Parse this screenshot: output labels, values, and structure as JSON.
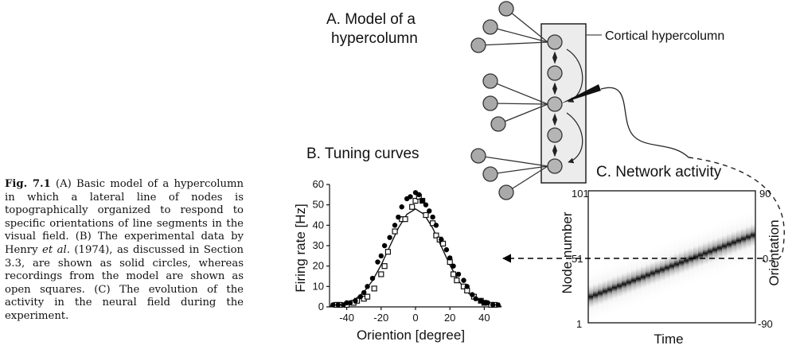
{
  "caption": {
    "fig_label": "Fig. 7.1",
    "part1": " (A) Basic model of a hypercolumn in which a lateral line of nodes is topographically organized to respond to specific orientations of line segments in the visual field. (B) The experimental data by Henry ",
    "et_al": "et al.",
    "part2": " (1974), as discussed in Section 3.3, are shown as solid circles, whereas recordings from the model are shown as open squares. (C) The evolution of the activity in the neural field during the experiment."
  },
  "panel_a": {
    "title_line1": "A. Model of a",
    "title_line2": "hypercolumn",
    "cortical_label": "Cortical hypercolumn"
  },
  "panel_b": {
    "title": "B. Tuning curves",
    "xlabel": "Oriention [degree]",
    "ylabel": "Firing rate [Hz]"
  },
  "panel_c": {
    "title": "C. Network activity",
    "xlabel": "Time",
    "ylabel_left": "Node  number",
    "ylabel_right": "Orientation",
    "left_ticks": [
      "101",
      "51",
      "1"
    ],
    "right_ticks": [
      "90",
      "0",
      "-90"
    ]
  },
  "chart_data": [
    {
      "type": "scatter",
      "title": "B. Tuning curves",
      "xlabel": "Oriention [degree]",
      "ylabel": "Firing rate [Hz]",
      "xlim": [
        -50,
        50
      ],
      "ylim": [
        0,
        60
      ],
      "xticks": [
        -40,
        -20,
        0,
        20,
        40
      ],
      "yticks": [
        0,
        10,
        20,
        30,
        40,
        50,
        60
      ],
      "series": [
        {
          "marker": "filled-circle",
          "x": [
            -48,
            -45,
            -42,
            -40,
            -38,
            -35,
            -32,
            -30,
            -28,
            -25,
            -22,
            -20,
            -18,
            -15,
            -12,
            -10,
            -8,
            -5,
            -3,
            0,
            2,
            4,
            6,
            8,
            10,
            12,
            15,
            18,
            20,
            22,
            25,
            28,
            30,
            33,
            35,
            38,
            40,
            42,
            45,
            48
          ],
          "y": [
            1,
            1,
            1,
            2,
            2,
            3,
            5,
            7,
            10,
            14,
            22,
            25,
            30,
            34,
            40,
            44,
            49,
            53,
            54,
            56,
            55,
            52,
            50,
            47,
            44,
            40,
            33,
            28,
            24,
            20,
            16,
            13,
            10,
            6,
            4,
            3,
            2,
            2,
            1,
            1
          ]
        },
        {
          "marker": "open-square",
          "x": [
            -46,
            -44,
            -40,
            -36,
            -34,
            -30,
            -28,
            -24,
            -20,
            -18,
            -16,
            -12,
            -8,
            -6,
            -2,
            0,
            2,
            4,
            6,
            10,
            12,
            14,
            16,
            20,
            22,
            24,
            28,
            30,
            34,
            38,
            40,
            44,
            46
          ],
          "y": [
            1,
            1,
            1,
            2,
            3,
            4,
            5,
            9,
            16,
            20,
            27,
            37,
            43,
            43,
            49,
            52,
            54,
            52,
            45,
            41,
            35,
            33,
            31,
            22,
            16,
            13,
            10,
            8,
            5,
            3,
            2,
            1,
            1
          ]
        },
        {
          "marker": "line",
          "x": [
            -50,
            -45,
            -40,
            -35,
            -30,
            -25,
            -20,
            -15,
            -10,
            -5,
            0,
            5,
            10,
            15,
            20,
            25,
            30,
            35,
            40,
            45,
            50
          ],
          "y": [
            0.3,
            0.8,
            1.8,
            3.8,
            7.3,
            12.9,
            20.5,
            29.6,
            38.6,
            45.4,
            48,
            45.4,
            38.6,
            29.6,
            20.5,
            12.9,
            7.3,
            3.8,
            1.8,
            0.8,
            0.3
          ]
        }
      ]
    },
    {
      "type": "heatmap",
      "title": "C. Network activity",
      "xlabel": "Time",
      "ylabel": "Node  number",
      "ylabel_right": "Orientation",
      "ylim": [
        1,
        101
      ],
      "ylim_right": [
        -90,
        90
      ],
      "ridge_node_start": 20,
      "ridge_node_end": 68
    }
  ]
}
